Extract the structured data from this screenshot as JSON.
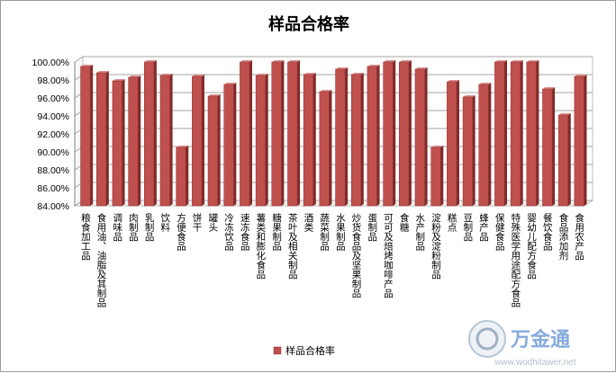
{
  "chart_data": {
    "type": "bar",
    "title": "样品合格率",
    "ylim": [
      84,
      100
    ],
    "yticks": [
      84,
      86,
      88,
      90,
      92,
      94,
      96,
      98,
      100
    ],
    "ytick_labels": [
      "84.00%",
      "86.00%",
      "88.00%",
      "90.00%",
      "92.00%",
      "94.00%",
      "96.00%",
      "98.00%",
      "100.00%"
    ],
    "grid": true,
    "legend": "bottom-center",
    "bar_color": "#c0504d",
    "categories": [
      "粮食加工品",
      "食用油、油脂及其制品",
      "调味品",
      "肉制品",
      "乳制品",
      "饮料",
      "方便食品",
      "饼干",
      "罐头",
      "冷冻饮品",
      "速冻食品",
      "薯类和膨化食品",
      "糖果制品",
      "茶叶及相关制品",
      "酒类",
      "蔬菜制品",
      "水果制品",
      "炒货食品及坚果制品",
      "蛋制品",
      "可可及焙烤咖啡产品",
      "食糖",
      "水产制品",
      "淀粉及淀粉制品",
      "糕点",
      "豆制品",
      "蜂产品",
      "保健食品",
      "特殊医学用途配方食品",
      "婴幼儿配方食品",
      "餐饮食品",
      "食品添加剂",
      "食用农产品"
    ],
    "series": [
      {
        "name": "样品合格率",
        "values": [
          99.5,
          98.8,
          97.9,
          98.3,
          100.0,
          98.5,
          90.5,
          98.4,
          96.2,
          97.5,
          100.0,
          98.5,
          100.0,
          100.0,
          98.6,
          96.7,
          99.2,
          98.6,
          99.5,
          100.0,
          100.0,
          99.2,
          90.5,
          97.8,
          96.1,
          97.5,
          100.0,
          100.0,
          100.0,
          97.0,
          94.1,
          98.4
        ]
      }
    ]
  },
  "watermark": {
    "text_cn": "万金通",
    "text_url": "www.wodhitawer.net"
  }
}
